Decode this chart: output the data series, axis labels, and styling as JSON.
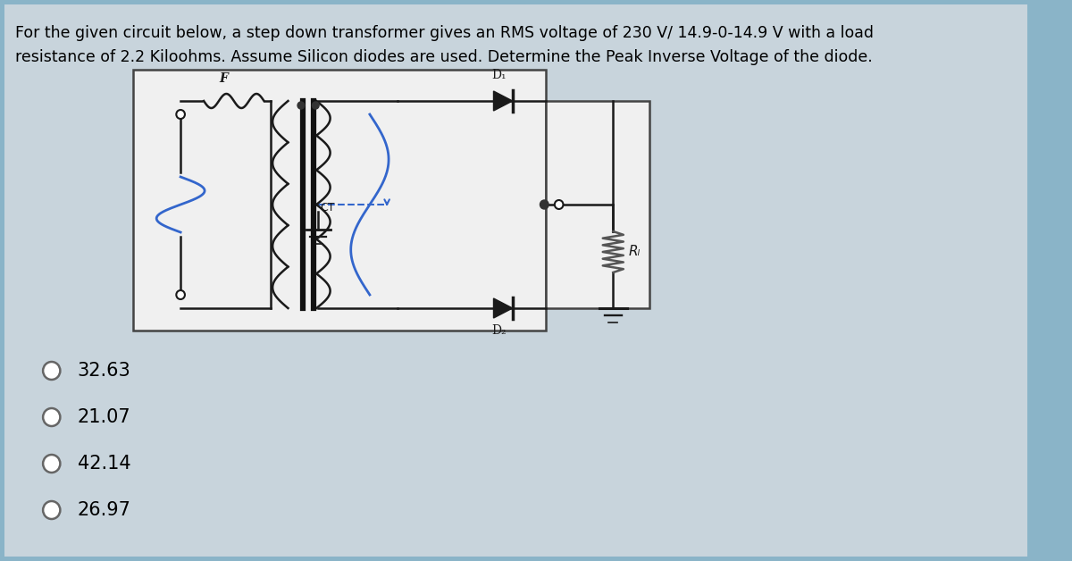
{
  "bg_color": "#8ab4c8",
  "panel_color": "#c8d4dc",
  "circuit_box_color": "#f0f0f0",
  "rl_box_color": "#f0f0f0",
  "title_line1": "For the given circuit below, a step down transformer gives an RMS voltage of 230 V/ 14.9-0-14.9 V with a load",
  "title_line2": "resistance of 2.2 Kiloohms. Assume Silicon diodes are used. Determine the Peak Inverse Voltage of the diode.",
  "options": [
    "32.63",
    "21.07",
    "42.14",
    "26.97"
  ],
  "title_fontsize": 12.5,
  "option_fontsize": 15,
  "text_color": "#000000",
  "blue_color": "#3366cc",
  "wire_color": "#1a1a1a",
  "coil_color": "#1a1a1a",
  "diode_color": "#1a1a1a",
  "core_color": "#111111"
}
